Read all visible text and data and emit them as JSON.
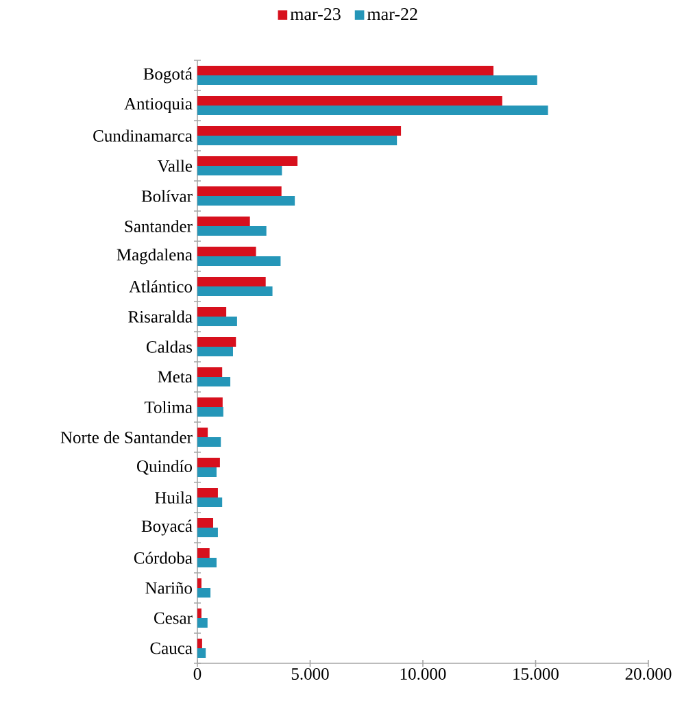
{
  "chart_data": {
    "type": "bar",
    "orientation": "horizontal",
    "legend": "top",
    "categories": [
      "Bogotá",
      "Antioquia",
      "Cundinamarca",
      "Valle",
      "Bolívar",
      "Santander",
      "Magdalena",
      "Atlántico",
      "Risaralda",
      "Caldas",
      "Meta",
      "Tolima",
      "Norte de Santander",
      "Quindío",
      "Huila",
      "Boyacá",
      "Córdoba",
      "Nariño",
      "Cesar",
      "Cauca"
    ],
    "series": [
      {
        "name": "mar-23",
        "color": "#d7101d",
        "values": [
          13130,
          13520,
          9030,
          4440,
          3730,
          2330,
          2600,
          3030,
          1280,
          1710,
          1100,
          1120,
          460,
          1000,
          910,
          700,
          540,
          180,
          180,
          210
        ]
      },
      {
        "name": "mar-22",
        "color": "#2596b8",
        "values": [
          15070,
          15550,
          8850,
          3750,
          4320,
          3060,
          3690,
          3330,
          1760,
          1580,
          1460,
          1150,
          1040,
          850,
          1100,
          910,
          850,
          580,
          450,
          370
        ]
      }
    ],
    "xlim": [
      0,
      20000
    ],
    "xticks": [
      {
        "value": 0,
        "label": "0"
      },
      {
        "value": 5000,
        "label": "5.000"
      },
      {
        "value": 10000,
        "label": "10.000"
      },
      {
        "value": 15000,
        "label": "15.000"
      },
      {
        "value": 20000,
        "label": "20.000"
      }
    ]
  }
}
